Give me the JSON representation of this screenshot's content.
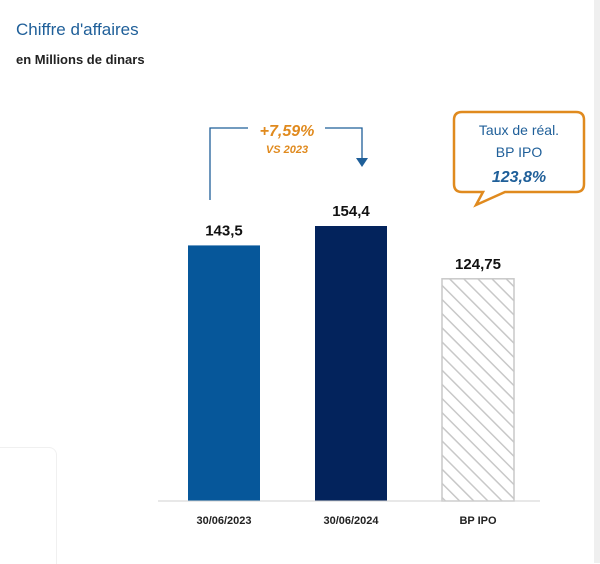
{
  "header": {
    "title": "Chiffre d'affaires",
    "subtitle": "en Millions de dinars"
  },
  "colors": {
    "bar_2023": "#06579a",
    "bar_2024": "#03235c",
    "bar_ipo_hatch": "#c8c8c8",
    "accent_orange": "#e08a1e",
    "title_blue": "#1f5f99"
  },
  "growth": {
    "value": "+7,59%",
    "caption": "VS 2023"
  },
  "bubble": {
    "line1": "Taux de réal.",
    "line2": "BP IPO",
    "value": "123,8%"
  },
  "chart_data": {
    "type": "bar",
    "categories": [
      "30/06/2023",
      "30/06/2024",
      "BP IPO"
    ],
    "values": [
      143.5,
      154.4,
      124.75
    ],
    "value_labels": [
      "143,5",
      "154,4",
      "124,75"
    ],
    "title": "Chiffre d'affaires",
    "subtitle": "en Millions de dinars",
    "ylim": [
      0,
      154.4
    ],
    "grid": false,
    "legend": "none"
  }
}
